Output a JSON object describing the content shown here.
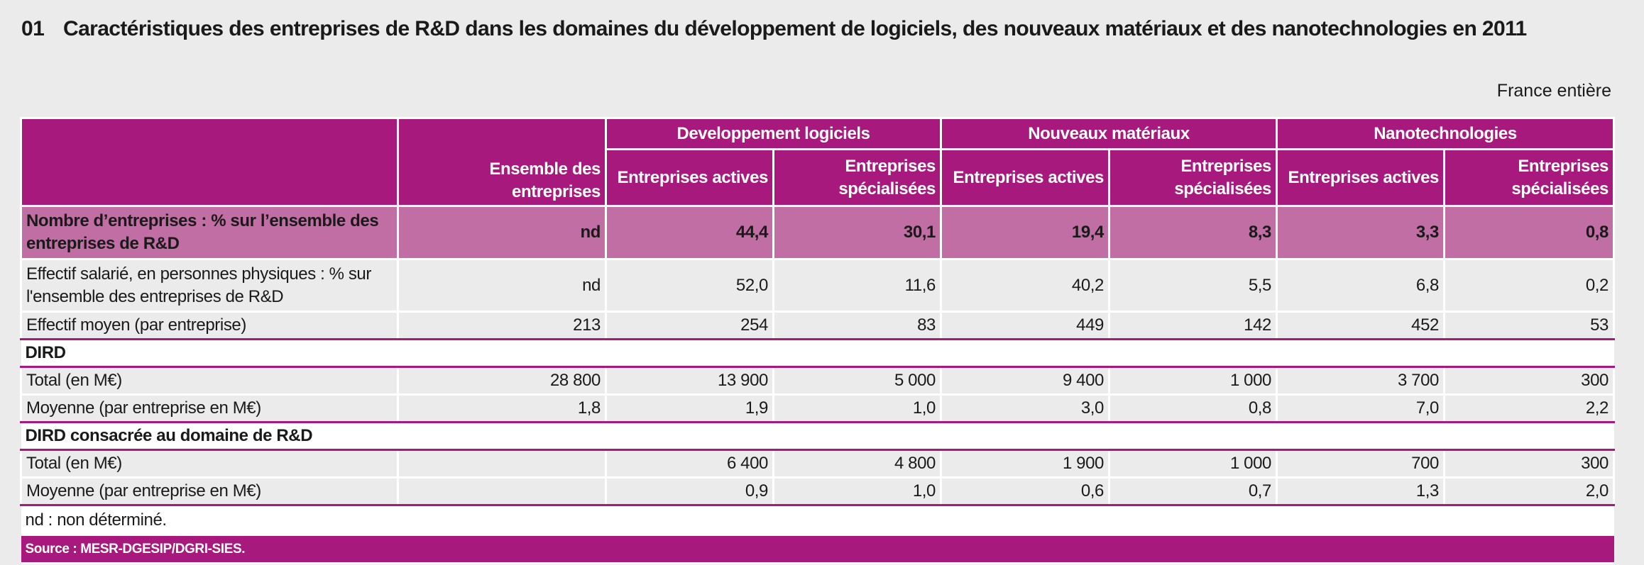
{
  "title": {
    "number": "01",
    "text": "Caractéristiques des entreprises de R&D dans les domaines du développement de logiciels, des nouveaux matériaux et des nanotechnologies en 2011"
  },
  "scope": "France entière",
  "colors": {
    "header": "#a8197e",
    "highlight": "#c06ea3",
    "body": "#ebebeb"
  },
  "header": {
    "ensemble": "Ensemble des entreprises",
    "groups": [
      "Developpement logiciels",
      "Nouveaux matériaux",
      "Nanotechnologies"
    ],
    "subcolumns": [
      "Entreprises actives",
      "Entreprises spécialisées"
    ]
  },
  "rows": [
    {
      "type": "hl",
      "label": "Nombre d’entreprises : %  sur l’ensemble des entreprises de R&D",
      "values": [
        "nd",
        "44,4",
        "30,1",
        "19,4",
        "8,3",
        "3,3",
        "0,8"
      ]
    },
    {
      "type": "tall",
      "label": "Effectif salarié, en personnes physiques : % sur l'ensemble des entreprises de R&D",
      "values": [
        "nd",
        "52,0",
        "11,6",
        "40,2",
        "5,5",
        "6,8",
        "0,2"
      ]
    },
    {
      "type": "end",
      "label": "Effectif moyen (par entreprise)",
      "values": [
        "213",
        "254",
        "83",
        "449",
        "142",
        "452",
        "53"
      ]
    },
    {
      "type": "sec",
      "label": "DIRD"
    },
    {
      "type": "r",
      "label": "Total (en M€)",
      "values": [
        "28 800",
        "13 900",
        "5 000",
        "9 400",
        "1 000",
        "3 700",
        "300"
      ]
    },
    {
      "type": "end",
      "label": "Moyenne (par entreprise en M€)",
      "values": [
        "1,8",
        "1,9",
        "1,0",
        "3,0",
        "0,8",
        "7,0",
        "2,2"
      ]
    },
    {
      "type": "sec",
      "label": "DIRD consacrée au domaine de R&D"
    },
    {
      "type": "r",
      "label": "Total (en M€)",
      "values": [
        "",
        "6 400",
        "4 800",
        "1 900",
        "1 000",
        "700",
        "300"
      ]
    },
    {
      "type": "end",
      "label": "Moyenne (par entreprise en M€)",
      "values": [
        "",
        "0,9",
        "1,0",
        "0,6",
        "0,7",
        "1,3",
        "2,0"
      ]
    }
  ],
  "footnote": "nd : non déterminé.",
  "source": "Source : MESR-DGESIP/DGRI-SIES."
}
